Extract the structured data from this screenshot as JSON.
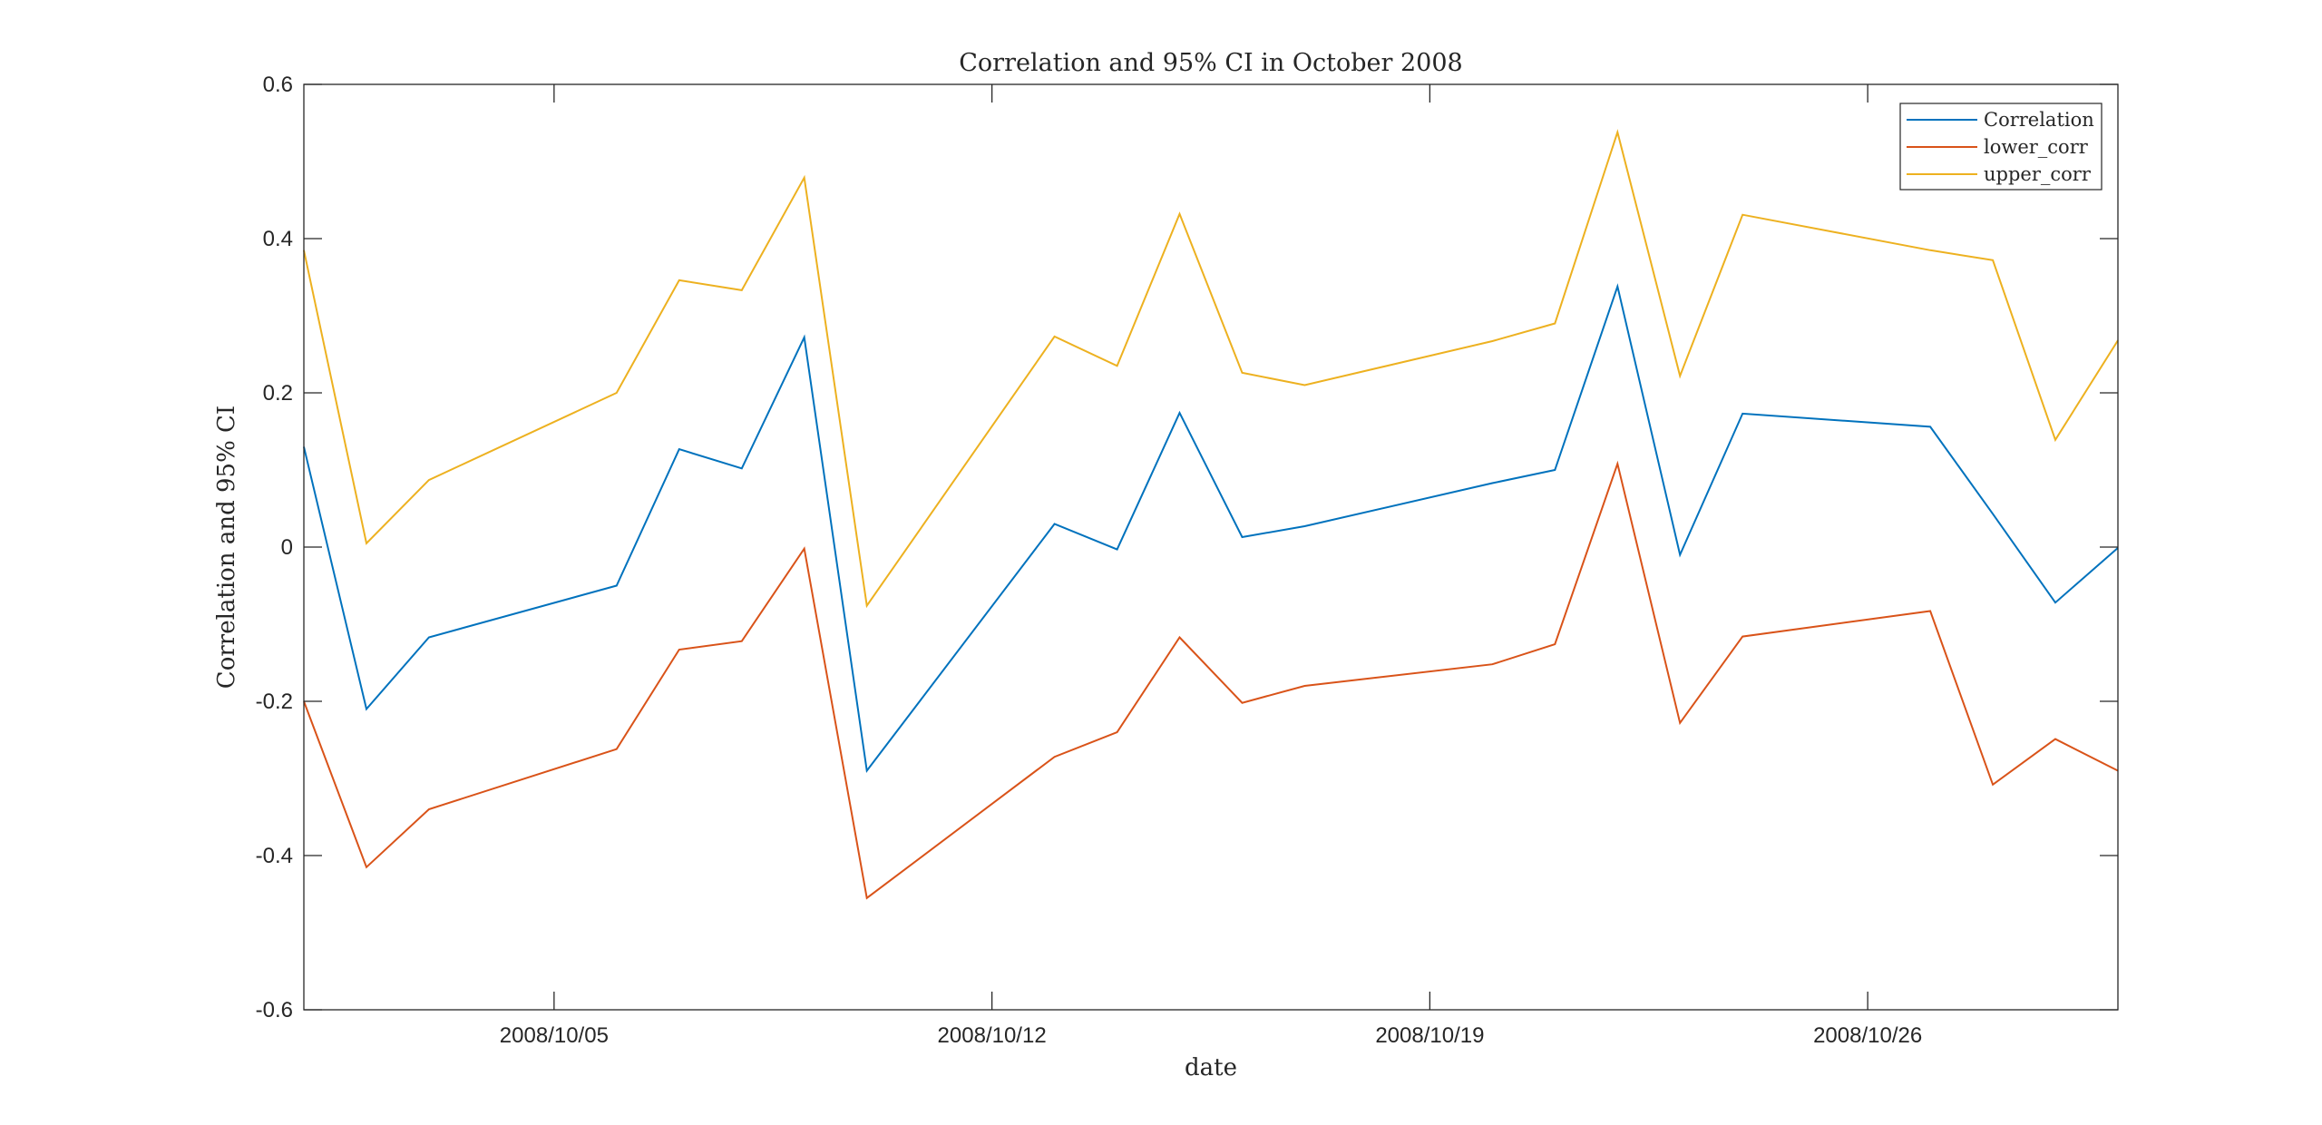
{
  "chart_data": {
    "type": "line",
    "title": "Correlation and 95% CI in October 2008",
    "xlabel": "date",
    "ylabel": "Correlation and 95% CI",
    "xlim": [
      "2008-10-01",
      "2008-10-30"
    ],
    "ylim": [
      -0.6,
      0.6
    ],
    "grid": false,
    "legend_position": "top-right",
    "x_ticks": [
      {
        "date": "2008-10-05",
        "label": "2008/10/05"
      },
      {
        "date": "2008-10-12",
        "label": "2008/10/12"
      },
      {
        "date": "2008-10-19",
        "label": "2008/10/19"
      },
      {
        "date": "2008-10-26",
        "label": "2008/10/26"
      }
    ],
    "y_ticks": [
      {
        "value": -0.6,
        "label": "-0.6"
      },
      {
        "value": -0.4,
        "label": "-0.4"
      },
      {
        "value": -0.2,
        "label": "-0.2"
      },
      {
        "value": 0,
        "label": "0"
      },
      {
        "value": 0.2,
        "label": "0.2"
      },
      {
        "value": 0.4,
        "label": "0.4"
      },
      {
        "value": 0.6,
        "label": "0.6"
      }
    ],
    "x": [
      "2008-10-01",
      "2008-10-02",
      "2008-10-03",
      "2008-10-06",
      "2008-10-07",
      "2008-10-08",
      "2008-10-09",
      "2008-10-10",
      "2008-10-13",
      "2008-10-14",
      "2008-10-15",
      "2008-10-16",
      "2008-10-17",
      "2008-10-20",
      "2008-10-21",
      "2008-10-22",
      "2008-10-23",
      "2008-10-24",
      "2008-10-27",
      "2008-10-28",
      "2008-10-29",
      "2008-10-30"
    ],
    "series": [
      {
        "name": "Correlation",
        "color": "#0072BD",
        "values": [
          0.13,
          -0.21,
          -0.117,
          -0.05,
          0.127,
          0.102,
          0.272,
          -0.29,
          0.03,
          -0.003,
          0.174,
          0.013,
          0.027,
          0.083,
          0.1,
          0.338,
          -0.01,
          0.173,
          0.156,
          0.043,
          -0.072,
          -0.001
        ]
      },
      {
        "name": "lower_corr",
        "color": "#D95319",
        "values": [
          -0.2,
          -0.415,
          -0.34,
          -0.262,
          -0.133,
          -0.122,
          -0.002,
          -0.455,
          -0.272,
          -0.24,
          -0.117,
          -0.202,
          -0.18,
          -0.152,
          -0.126,
          0.108,
          -0.228,
          -0.116,
          -0.083,
          -0.308,
          -0.249,
          -0.29
        ]
      },
      {
        "name": "upper_corr",
        "color": "#EDB120",
        "values": [
          0.385,
          0.005,
          0.087,
          0.2,
          0.346,
          0.333,
          0.479,
          -0.076,
          0.273,
          0.235,
          0.432,
          0.226,
          0.21,
          0.267,
          0.29,
          0.538,
          0.222,
          0.431,
          0.385,
          0.372,
          0.139,
          0.268
        ]
      }
    ]
  }
}
